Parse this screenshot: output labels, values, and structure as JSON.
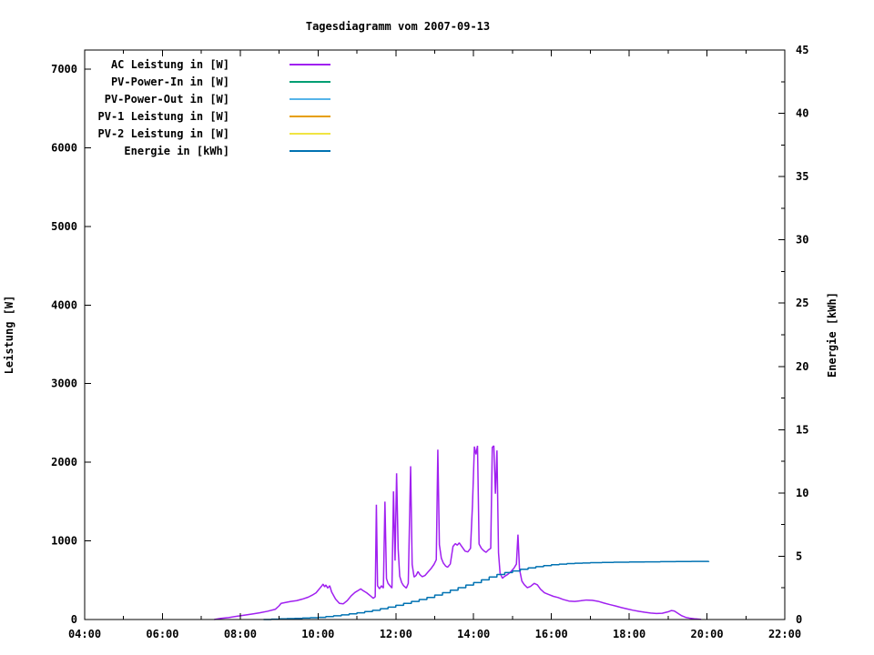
{
  "title": "Tagesdiagramm vom 2007-09-13",
  "axes": {
    "left": {
      "label": "Leistung [W]",
      "tick_labels": [
        "0",
        "1000",
        "2000",
        "3000",
        "4000",
        "5000",
        "6000",
        "7000"
      ]
    },
    "right": {
      "label": "Energie [kWh]",
      "tick_labels": [
        "0",
        "5",
        "10",
        "15",
        "20",
        "25",
        "30",
        "35",
        "40",
        "45"
      ]
    },
    "x": {
      "tick_labels": [
        "04:00",
        "06:00",
        "08:00",
        "10:00",
        "12:00",
        "14:00",
        "16:00",
        "18:00",
        "20:00",
        "22:00"
      ]
    }
  },
  "legend": {
    "position": "top-left",
    "items": [
      {
        "label": "AC Leistung in [W]",
        "color": "#a020f0"
      },
      {
        "label": "PV-Power-In in [W]",
        "color": "#009e73"
      },
      {
        "label": "PV-Power-Out in [W]",
        "color": "#56b4e9"
      },
      {
        "label": "PV-1 Leistung in [W]",
        "color": "#e69f00"
      },
      {
        "label": "PV-2 Leistung in [W]",
        "color": "#f0e442"
      },
      {
        "label": "Energie in [kWh]",
        "color": "#0072b2"
      }
    ]
  },
  "chart_data": {
    "type": "line",
    "title": "Tagesdiagramm vom 2007-09-13",
    "xlabel": "",
    "x_range_hours": [
      4,
      22
    ],
    "x_major_ticks": [
      4,
      6,
      8,
      10,
      12,
      14,
      16,
      18,
      20,
      22
    ],
    "x_minor_ticks": [
      5,
      7,
      9,
      11,
      13,
      15,
      17,
      19,
      21
    ],
    "y_left": {
      "label": "Leistung [W]",
      "range": [
        0,
        7242
      ],
      "ticks": [
        0,
        1000,
        2000,
        3000,
        4000,
        5000,
        6000,
        7000
      ]
    },
    "y_right": {
      "label": "Energie [kWh]",
      "range": [
        0,
        45
      ],
      "ticks": [
        0,
        5,
        10,
        15,
        20,
        25,
        30,
        35,
        40,
        45
      ],
      "minor_step": 2.5
    },
    "grid": false,
    "legend_position": "top-left",
    "series": [
      {
        "name": "AC Leistung in [W]",
        "color": "#a020f0",
        "axis": "left",
        "step": false,
        "points": [
          [
            7.33,
            0
          ],
          [
            7.5,
            15
          ],
          [
            7.7,
            25
          ],
          [
            7.9,
            40
          ],
          [
            8.1,
            55
          ],
          [
            8.3,
            70
          ],
          [
            8.5,
            85
          ],
          [
            8.7,
            105
          ],
          [
            8.9,
            130
          ],
          [
            9.0,
            175
          ],
          [
            9.05,
            205
          ],
          [
            9.15,
            215
          ],
          [
            9.3,
            230
          ],
          [
            9.45,
            240
          ],
          [
            9.6,
            260
          ],
          [
            9.75,
            285
          ],
          [
            9.85,
            310
          ],
          [
            9.95,
            340
          ],
          [
            10.0,
            370
          ],
          [
            10.05,
            400
          ],
          [
            10.1,
            430
          ],
          [
            10.13,
            450
          ],
          [
            10.17,
            415
          ],
          [
            10.2,
            440
          ],
          [
            10.25,
            400
          ],
          [
            10.3,
            430
          ],
          [
            10.35,
            350
          ],
          [
            10.45,
            260
          ],
          [
            10.55,
            205
          ],
          [
            10.65,
            200
          ],
          [
            10.75,
            240
          ],
          [
            10.85,
            300
          ],
          [
            10.95,
            345
          ],
          [
            11.05,
            375
          ],
          [
            11.1,
            390
          ],
          [
            11.15,
            370
          ],
          [
            11.25,
            340
          ],
          [
            11.35,
            300
          ],
          [
            11.42,
            270
          ],
          [
            11.47,
            290
          ],
          [
            11.5,
            1460
          ],
          [
            11.53,
            430
          ],
          [
            11.58,
            390
          ],
          [
            11.63,
            430
          ],
          [
            11.68,
            400
          ],
          [
            11.72,
            1500
          ],
          [
            11.76,
            520
          ],
          [
            11.8,
            460
          ],
          [
            11.85,
            430
          ],
          [
            11.9,
            400
          ],
          [
            11.94,
            1630
          ],
          [
            11.98,
            750
          ],
          [
            12.02,
            1860
          ],
          [
            12.06,
            900
          ],
          [
            12.1,
            550
          ],
          [
            12.15,
            470
          ],
          [
            12.2,
            430
          ],
          [
            12.27,
            400
          ],
          [
            12.32,
            460
          ],
          [
            12.38,
            1950
          ],
          [
            12.42,
            700
          ],
          [
            12.47,
            540
          ],
          [
            12.52,
            560
          ],
          [
            12.57,
            610
          ],
          [
            12.62,
            570
          ],
          [
            12.68,
            545
          ],
          [
            12.75,
            560
          ],
          [
            12.82,
            600
          ],
          [
            12.9,
            645
          ],
          [
            12.98,
            700
          ],
          [
            13.04,
            760
          ],
          [
            13.08,
            2160
          ],
          [
            13.12,
            950
          ],
          [
            13.17,
            780
          ],
          [
            13.22,
            720
          ],
          [
            13.28,
            680
          ],
          [
            13.33,
            665
          ],
          [
            13.4,
            705
          ],
          [
            13.47,
            930
          ],
          [
            13.53,
            965
          ],
          [
            13.58,
            945
          ],
          [
            13.63,
            975
          ],
          [
            13.68,
            940
          ],
          [
            13.73,
            905
          ],
          [
            13.78,
            870
          ],
          [
            13.85,
            860
          ],
          [
            13.92,
            905
          ],
          [
            13.97,
            1450
          ],
          [
            14.02,
            2200
          ],
          [
            14.06,
            2100
          ],
          [
            14.1,
            2210
          ],
          [
            14.14,
            960
          ],
          [
            14.2,
            905
          ],
          [
            14.26,
            875
          ],
          [
            14.32,
            855
          ],
          [
            14.38,
            885
          ],
          [
            14.44,
            905
          ],
          [
            14.48,
            2190
          ],
          [
            14.52,
            2210
          ],
          [
            14.56,
            1600
          ],
          [
            14.6,
            2150
          ],
          [
            14.64,
            850
          ],
          [
            14.68,
            590
          ],
          [
            14.74,
            525
          ],
          [
            14.8,
            550
          ],
          [
            14.88,
            575
          ],
          [
            14.96,
            610
          ],
          [
            15.04,
            655
          ],
          [
            15.1,
            705
          ],
          [
            15.14,
            1080
          ],
          [
            15.18,
            640
          ],
          [
            15.24,
            490
          ],
          [
            15.3,
            445
          ],
          [
            15.38,
            405
          ],
          [
            15.46,
            420
          ],
          [
            15.56,
            460
          ],
          [
            15.64,
            440
          ],
          [
            15.72,
            385
          ],
          [
            15.82,
            340
          ],
          [
            15.92,
            320
          ],
          [
            16.05,
            295
          ],
          [
            16.17,
            280
          ],
          [
            16.3,
            255
          ],
          [
            16.45,
            235
          ],
          [
            16.6,
            230
          ],
          [
            16.75,
            238
          ],
          [
            16.9,
            248
          ],
          [
            17.05,
            244
          ],
          [
            17.2,
            232
          ],
          [
            17.35,
            210
          ],
          [
            17.5,
            190
          ],
          [
            17.65,
            172
          ],
          [
            17.8,
            152
          ],
          [
            17.95,
            135
          ],
          [
            18.1,
            118
          ],
          [
            18.25,
            104
          ],
          [
            18.4,
            92
          ],
          [
            18.55,
            82
          ],
          [
            18.7,
            76
          ],
          [
            18.85,
            80
          ],
          [
            19.0,
            98
          ],
          [
            19.08,
            114
          ],
          [
            19.16,
            108
          ],
          [
            19.25,
            80
          ],
          [
            19.35,
            48
          ],
          [
            19.45,
            28
          ],
          [
            19.55,
            18
          ],
          [
            19.7,
            8
          ],
          [
            19.85,
            2
          ]
        ]
      },
      {
        "name": "PV-Power-In in [W]",
        "color": "#009e73",
        "axis": "left",
        "step": false,
        "points": []
      },
      {
        "name": "PV-Power-Out in [W]",
        "color": "#56b4e9",
        "axis": "left",
        "step": false,
        "points": []
      },
      {
        "name": "PV-1 Leistung in [W]",
        "color": "#e69f00",
        "axis": "left",
        "step": false,
        "points": []
      },
      {
        "name": "PV-2 Leistung in [W]",
        "color": "#f0e442",
        "axis": "left",
        "step": false,
        "points": []
      },
      {
        "name": "Energie in [kWh]",
        "color": "#0072b2",
        "axis": "right",
        "step": true,
        "points": [
          [
            8.6,
            0.0
          ],
          [
            8.8,
            0.03
          ],
          [
            9.0,
            0.05
          ],
          [
            9.2,
            0.07
          ],
          [
            9.4,
            0.09
          ],
          [
            9.6,
            0.12
          ],
          [
            9.8,
            0.14
          ],
          [
            10.0,
            0.17
          ],
          [
            10.2,
            0.23
          ],
          [
            10.4,
            0.3
          ],
          [
            10.6,
            0.37
          ],
          [
            10.8,
            0.45
          ],
          [
            11.0,
            0.53
          ],
          [
            11.2,
            0.63
          ],
          [
            11.4,
            0.73
          ],
          [
            11.6,
            0.85
          ],
          [
            11.8,
            0.98
          ],
          [
            12.0,
            1.12
          ],
          [
            12.2,
            1.28
          ],
          [
            12.4,
            1.43
          ],
          [
            12.6,
            1.58
          ],
          [
            12.8,
            1.74
          ],
          [
            13.0,
            1.93
          ],
          [
            13.2,
            2.12
          ],
          [
            13.4,
            2.32
          ],
          [
            13.6,
            2.52
          ],
          [
            13.8,
            2.72
          ],
          [
            14.0,
            2.92
          ],
          [
            14.2,
            3.14
          ],
          [
            14.4,
            3.36
          ],
          [
            14.6,
            3.56
          ],
          [
            14.8,
            3.71
          ],
          [
            15.0,
            3.84
          ],
          [
            15.2,
            3.97
          ],
          [
            15.4,
            4.08
          ],
          [
            15.6,
            4.18
          ],
          [
            15.8,
            4.26
          ],
          [
            16.0,
            4.33
          ],
          [
            16.2,
            4.38
          ],
          [
            16.4,
            4.42
          ],
          [
            16.6,
            4.45
          ],
          [
            16.8,
            4.47
          ],
          [
            17.0,
            4.49
          ],
          [
            17.3,
            4.51
          ],
          [
            17.6,
            4.53
          ],
          [
            18.0,
            4.55
          ],
          [
            18.4,
            4.56
          ],
          [
            18.8,
            4.575
          ],
          [
            19.2,
            4.585
          ],
          [
            19.6,
            4.59
          ],
          [
            20.05,
            4.6
          ]
        ]
      }
    ]
  }
}
